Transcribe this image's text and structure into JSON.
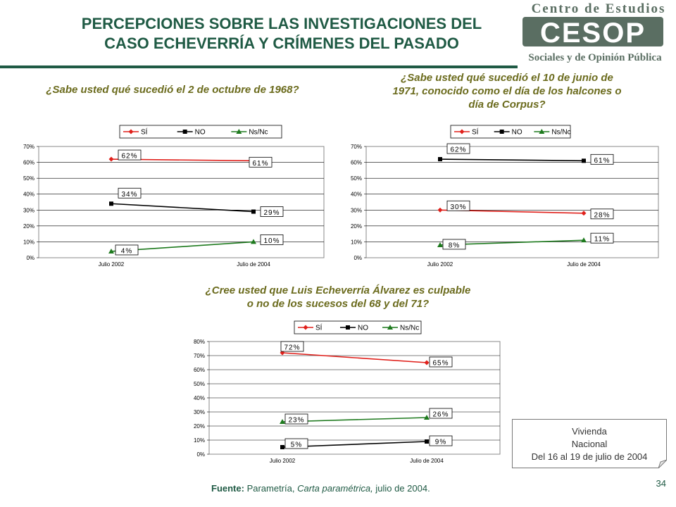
{
  "title": {
    "line1": "PERCEPCIONES SOBRE LAS INVESTIGACIONES DEL",
    "line2": "CASO ECHEVERRÍA Y CRÍMENES DEL PASADO"
  },
  "logo": {
    "top_text": "Centro de Estudios",
    "mark_text": "CESOP",
    "bottom_text": "Sociales y de Opinión Pública",
    "color": "#5a6e62"
  },
  "colors": {
    "si": "#e0201b",
    "no": "#000000",
    "nsnc": "#1e7a1e",
    "accent": "#1f5a44",
    "question": "#6b6b1d"
  },
  "questions": {
    "q1": "¿Sabe usted qué sucedió el 2 de octubre de 1968?",
    "q2_line1": "¿Sabe usted qué sucedió el 10 de junio de",
    "q2_line2": "1971, conocido como el día de los halcones o",
    "q2_line3": "día de Corpus?",
    "q3_line1": "¿Cree usted que Luis Echeverría Álvarez es culpable",
    "q3_line2": "o no de los sucesos del 68 y del 71?"
  },
  "chart_data": [
    {
      "type": "line",
      "categories": [
        "Julio 2002",
        "Julio de 2004"
      ],
      "y_ticks": [
        "0%",
        "10%",
        "20%",
        "30%",
        "40%",
        "50%",
        "60%",
        "70%"
      ],
      "ylim": [
        0,
        70
      ],
      "legend": "top",
      "grid": true,
      "series": [
        {
          "name": "SÍ",
          "values": [
            62,
            61
          ],
          "labels": [
            "62%",
            "61%"
          ]
        },
        {
          "name": "NO",
          "values": [
            34,
            29
          ],
          "labels": [
            "34%",
            "29%"
          ]
        },
        {
          "name": "Ns/Nc",
          "values": [
            4,
            10
          ],
          "labels": [
            "4%",
            "10%"
          ]
        }
      ]
    },
    {
      "type": "line",
      "categories": [
        "Julio 2002",
        "Julio de 2004"
      ],
      "y_ticks": [
        "0%",
        "10%",
        "20%",
        "30%",
        "40%",
        "50%",
        "60%",
        "70%"
      ],
      "ylim": [
        0,
        70
      ],
      "legend": "top",
      "grid": true,
      "series": [
        {
          "name": "SÍ",
          "values": [
            30,
            28
          ],
          "labels": [
            "30%",
            "28%"
          ]
        },
        {
          "name": "NO",
          "values": [
            62,
            61
          ],
          "labels": [
            "62%",
            "61%"
          ]
        },
        {
          "name": "Ns/Nc",
          "values": [
            8,
            11
          ],
          "labels": [
            "8%",
            "11%"
          ]
        }
      ]
    },
    {
      "type": "line",
      "categories": [
        "Julio 2002",
        "Julio de 2004"
      ],
      "y_ticks": [
        "0%",
        "10%",
        "20%",
        "30%",
        "40%",
        "50%",
        "60%",
        "70%",
        "80%"
      ],
      "ylim": [
        0,
        80
      ],
      "legend": "top",
      "grid": true,
      "series": [
        {
          "name": "SÍ",
          "values": [
            72,
            65
          ],
          "labels": [
            "72%",
            "65%"
          ]
        },
        {
          "name": "NO",
          "values": [
            5,
            9
          ],
          "labels": [
            "5%",
            "9%"
          ]
        },
        {
          "name": "Ns/Nc",
          "values": [
            23,
            26
          ],
          "labels": [
            "23%",
            "26%"
          ]
        }
      ]
    }
  ],
  "note": {
    "line1": "Vivienda",
    "line2": "Nacional",
    "line3": "Del 16 al 19 de julio de 2004"
  },
  "source": {
    "label": "Fuente:",
    "text1": " Parametría, ",
    "text2": "Carta paramétrica,",
    "text3": " julio de 2004."
  },
  "page_number": "34"
}
